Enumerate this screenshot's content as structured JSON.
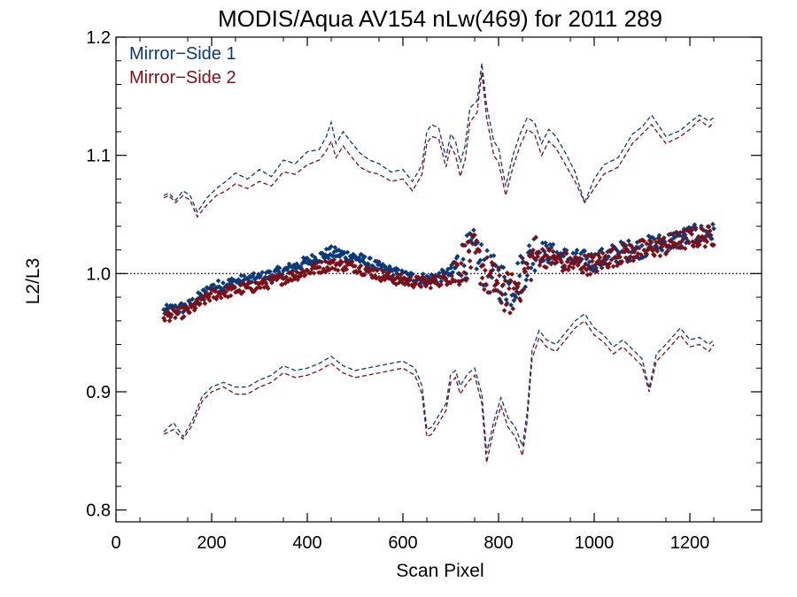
{
  "chart_data": {
    "type": "scatter",
    "title": "MODIS/Aqua AV154 nLw(469) for 2011 289",
    "xlabel": "Scan Pixel",
    "ylabel": "L2/L3",
    "xlim": [
      0,
      1350
    ],
    "ylim": [
      0.79,
      1.2
    ],
    "x_ticks": [
      0,
      200,
      400,
      600,
      800,
      1000,
      1200
    ],
    "x_tick_labels": [
      "0",
      "200",
      "400",
      "600",
      "800",
      "1000",
      "1200"
    ],
    "y_ticks": [
      0.8,
      0.9,
      1.0,
      1.1,
      1.2
    ],
    "y_tick_labels": [
      "0.8",
      "0.9",
      "1.0",
      "1.1",
      "1.2"
    ],
    "reference_line": 1.0,
    "legend_position": "top-left",
    "series": [
      {
        "name": "Mirror−Side 1",
        "color": "#0a3a7a",
        "mean_x": [
          100,
          150,
          200,
          250,
          300,
          350,
          400,
          450,
          500,
          550,
          600,
          650,
          700,
          725,
          750,
          775,
          800,
          825,
          850,
          875,
          900,
          950,
          1000,
          1050,
          1100,
          1150,
          1200,
          1250
        ],
        "mean_y": [
          0.968,
          0.972,
          0.988,
          0.993,
          0.996,
          1.002,
          1.01,
          1.018,
          1.014,
          1.005,
          0.998,
          0.995,
          1.0,
          1.012,
          1.02,
          1.002,
          0.995,
          0.988,
          1.002,
          1.02,
          1.018,
          1.012,
          1.01,
          1.018,
          1.022,
          1.026,
          1.032,
          1.034
        ],
        "upper_x": [
          100,
          110,
          125,
          140,
          155,
          170,
          190,
          210,
          230,
          250,
          275,
          300,
          325,
          350,
          375,
          400,
          425,
          440,
          450,
          460,
          475,
          490,
          510,
          530,
          550,
          575,
          600,
          620,
          640,
          650,
          660,
          675,
          690,
          700,
          710,
          720,
          730,
          740,
          755,
          765,
          775,
          790,
          800,
          815,
          830,
          845,
          860,
          875,
          890,
          905,
          920,
          940,
          960,
          980,
          1000,
          1020,
          1050,
          1080,
          1100,
          1120,
          1150,
          1180,
          1200,
          1220,
          1240,
          1250
        ],
        "upper_y": [
          1.066,
          1.068,
          1.062,
          1.07,
          1.066,
          1.052,
          1.064,
          1.072,
          1.078,
          1.085,
          1.08,
          1.088,
          1.082,
          1.096,
          1.093,
          1.103,
          1.105,
          1.116,
          1.128,
          1.11,
          1.12,
          1.112,
          1.102,
          1.096,
          1.093,
          1.086,
          1.088,
          1.078,
          1.092,
          1.12,
          1.126,
          1.123,
          1.098,
          1.118,
          1.112,
          1.094,
          1.108,
          1.14,
          1.146,
          1.178,
          1.142,
          1.112,
          1.106,
          1.074,
          1.1,
          1.118,
          1.132,
          1.128,
          1.11,
          1.122,
          1.116,
          1.102,
          1.086,
          1.06,
          1.08,
          1.092,
          1.098,
          1.118,
          1.124,
          1.134,
          1.116,
          1.121,
          1.128,
          1.134,
          1.129,
          1.132
        ],
        "lower_x": [
          100,
          120,
          140,
          160,
          180,
          200,
          225,
          250,
          275,
          300,
          325,
          350,
          375,
          400,
          425,
          450,
          475,
          500,
          525,
          550,
          575,
          600,
          625,
          640,
          650,
          660,
          675,
          690,
          700,
          710,
          720,
          735,
          750,
          765,
          775,
          790,
          805,
          820,
          835,
          850,
          860,
          870,
          885,
          900,
          920,
          940,
          960,
          980,
          1000,
          1020,
          1040,
          1060,
          1080,
          1100,
          1115,
          1130,
          1150,
          1180,
          1200,
          1220,
          1240,
          1250
        ],
        "lower_y": [
          0.866,
          0.874,
          0.862,
          0.876,
          0.896,
          0.904,
          0.908,
          0.904,
          0.904,
          0.91,
          0.914,
          0.922,
          0.918,
          0.92,
          0.924,
          0.93,
          0.922,
          0.918,
          0.92,
          0.922,
          0.924,
          0.926,
          0.92,
          0.905,
          0.868,
          0.87,
          0.88,
          0.89,
          0.915,
          0.918,
          0.905,
          0.915,
          0.92,
          0.898,
          0.848,
          0.875,
          0.895,
          0.878,
          0.87,
          0.854,
          0.884,
          0.935,
          0.952,
          0.944,
          0.94,
          0.95,
          0.96,
          0.966,
          0.954,
          0.948,
          0.938,
          0.944,
          0.936,
          0.928,
          0.903,
          0.932,
          0.94,
          0.954,
          0.944,
          0.946,
          0.94,
          0.944
        ]
      },
      {
        "name": "Mirror−Side 2",
        "color": "#7a1018",
        "mean_x": [
          100,
          150,
          200,
          250,
          300,
          350,
          400,
          450,
          500,
          550,
          600,
          650,
          700,
          725,
          750,
          775,
          800,
          825,
          850,
          875,
          900,
          950,
          1000,
          1050,
          1100,
          1150,
          1200,
          1250
        ],
        "mean_y": [
          0.964,
          0.968,
          0.982,
          0.986,
          0.99,
          0.996,
          1.002,
          1.008,
          1.006,
          0.999,
          0.994,
          0.992,
          0.996,
          1.01,
          1.016,
          0.998,
          0.988,
          0.982,
          0.996,
          1.016,
          1.014,
          1.008,
          1.008,
          1.016,
          1.02,
          1.024,
          1.03,
          1.032
        ],
        "upper_x": [
          100,
          110,
          125,
          140,
          155,
          170,
          190,
          210,
          230,
          250,
          275,
          300,
          325,
          350,
          375,
          400,
          425,
          440,
          450,
          460,
          475,
          490,
          510,
          530,
          550,
          575,
          600,
          620,
          640,
          650,
          660,
          675,
          690,
          700,
          710,
          720,
          730,
          740,
          755,
          765,
          775,
          790,
          800,
          815,
          830,
          845,
          860,
          875,
          890,
          905,
          920,
          940,
          960,
          980,
          1000,
          1020,
          1050,
          1080,
          1100,
          1120,
          1150,
          1180,
          1200,
          1220,
          1240,
          1250
        ],
        "upper_y": [
          1.064,
          1.066,
          1.06,
          1.066,
          1.062,
          1.048,
          1.058,
          1.066,
          1.07,
          1.076,
          1.072,
          1.078,
          1.074,
          1.086,
          1.084,
          1.092,
          1.096,
          1.104,
          1.112,
          1.098,
          1.108,
          1.1,
          1.09,
          1.086,
          1.084,
          1.078,
          1.08,
          1.07,
          1.084,
          1.11,
          1.116,
          1.114,
          1.09,
          1.108,
          1.1,
          1.082,
          1.096,
          1.128,
          1.136,
          1.17,
          1.132,
          1.1,
          1.094,
          1.066,
          1.09,
          1.108,
          1.122,
          1.118,
          1.1,
          1.112,
          1.106,
          1.092,
          1.078,
          1.06,
          1.072,
          1.084,
          1.09,
          1.11,
          1.118,
          1.126,
          1.11,
          1.116,
          1.122,
          1.13,
          1.124,
          1.128
        ],
        "lower_x": [
          100,
          120,
          140,
          160,
          180,
          200,
          225,
          250,
          275,
          300,
          325,
          350,
          375,
          400,
          425,
          450,
          475,
          500,
          525,
          550,
          575,
          600,
          625,
          640,
          650,
          660,
          675,
          690,
          700,
          710,
          720,
          735,
          750,
          765,
          775,
          790,
          805,
          820,
          835,
          850,
          860,
          870,
          885,
          900,
          920,
          940,
          960,
          980,
          1000,
          1020,
          1040,
          1060,
          1080,
          1100,
          1115,
          1130,
          1150,
          1180,
          1200,
          1220,
          1240,
          1250
        ],
        "lower_y": [
          0.864,
          0.868,
          0.86,
          0.872,
          0.892,
          0.9,
          0.904,
          0.898,
          0.898,
          0.904,
          0.908,
          0.916,
          0.912,
          0.914,
          0.918,
          0.924,
          0.916,
          0.912,
          0.914,
          0.916,
          0.918,
          0.92,
          0.914,
          0.898,
          0.862,
          0.864,
          0.874,
          0.884,
          0.908,
          0.912,
          0.898,
          0.908,
          0.914,
          0.89,
          0.84,
          0.868,
          0.888,
          0.87,
          0.862,
          0.846,
          0.876,
          0.928,
          0.946,
          0.938,
          0.934,
          0.944,
          0.954,
          0.96,
          0.948,
          0.942,
          0.932,
          0.938,
          0.93,
          0.922,
          0.9,
          0.926,
          0.934,
          0.948,
          0.938,
          0.94,
          0.934,
          0.94
        ]
      }
    ]
  }
}
